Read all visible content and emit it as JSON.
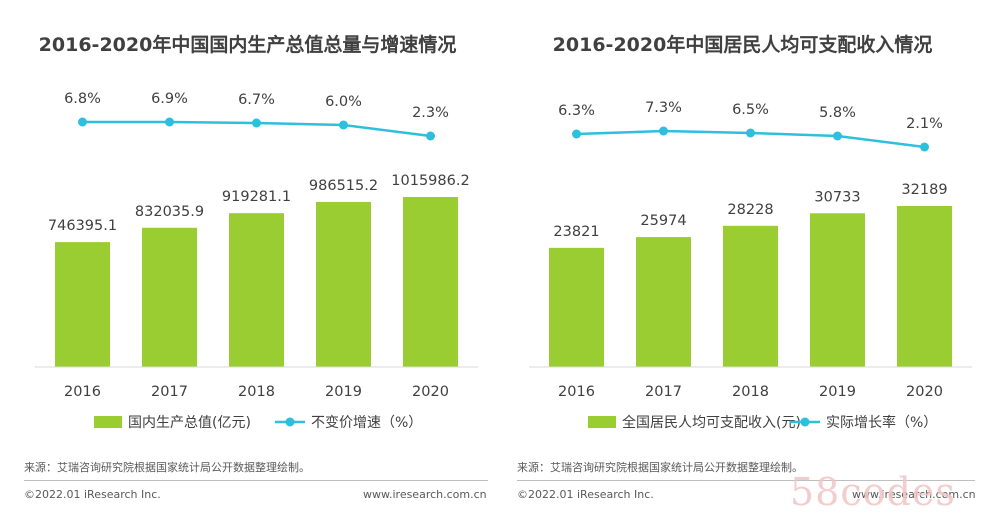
{
  "chart_data": [
    {
      "type": "bar",
      "title": "2016-2020年中国国内生产总值总量与增速情况",
      "categories": [
        "2016",
        "2017",
        "2018",
        "2019",
        "2020"
      ],
      "series": [
        {
          "name": "国内生产总值(亿元)",
          "type": "bar",
          "values": [
            746395.1,
            832035.9,
            919281.1,
            986515.2,
            1015986.2
          ],
          "labels": [
            "746395.1",
            "832035.9",
            "919281.1",
            "986515.2",
            "1015986.2"
          ]
        },
        {
          "name": "不变价增速（%）",
          "type": "line",
          "values": [
            6.8,
            6.9,
            6.7,
            6.0,
            2.3
          ],
          "labels": [
            "6.8%",
            "6.9%",
            "6.7%",
            "6.0%",
            "2.3%"
          ]
        }
      ],
      "colors": {
        "bar": "#9acd32",
        "line": "#2ebfde"
      },
      "legend_position": "bottom"
    },
    {
      "type": "bar",
      "title": "2016-2020年中国居民人均可支配收入情况",
      "categories": [
        "2016",
        "2017",
        "2018",
        "2019",
        "2020"
      ],
      "series": [
        {
          "name": "全国居民人均可支配收入(元)",
          "type": "bar",
          "values": [
            23821,
            25974,
            28228,
            30733,
            32189
          ],
          "labels": [
            "23821",
            "25974",
            "28228",
            "30733",
            "32189"
          ]
        },
        {
          "name": "实际增长率（%）",
          "type": "line",
          "values": [
            6.3,
            7.3,
            6.5,
            5.8,
            2.1
          ],
          "labels": [
            "6.3%",
            "7.3%",
            "6.5%",
            "5.8%",
            "2.1%"
          ]
        }
      ],
      "colors": {
        "bar": "#9acd32",
        "line": "#2ebfde"
      },
      "legend_position": "bottom"
    }
  ],
  "footer": {
    "source": "来源：艾瑞咨询研究院根据国家统计局公开数据整理绘制。",
    "copyright": "©2022.01 iResearch Inc.",
    "website": "www.iresearch.com.cn"
  },
  "watermark": "58codes"
}
